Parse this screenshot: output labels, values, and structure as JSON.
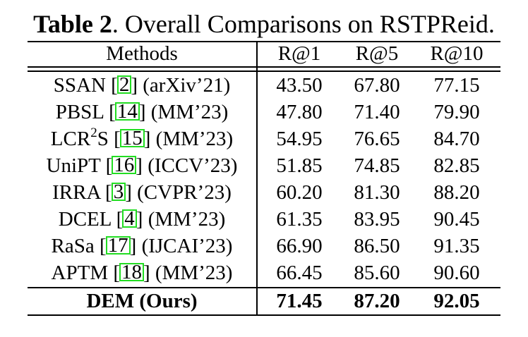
{
  "caption": {
    "label": "Table 2",
    "text": ". Overall Comparisons on RSTPReid."
  },
  "header": {
    "methods": "Methods",
    "r1": "R@1",
    "r5": "R@5",
    "r10": "R@10"
  },
  "rows": [
    {
      "pre": "SSAN [",
      "cite": "2",
      "post": "] (arXiv’21)",
      "r1": "43.50",
      "r5": "67.80",
      "r10": "77.15"
    },
    {
      "pre": "PBSL [",
      "cite": "14",
      "post": "] (MM’23)",
      "r1": "47.80",
      "r5": "71.40",
      "r10": "79.90"
    },
    {
      "pre": "LCR",
      "sup": "2",
      "pre2": "S [",
      "cite": "15",
      "post": "] (MM’23)",
      "r1": "54.95",
      "r5": "76.65",
      "r10": "84.70"
    },
    {
      "pre": "UniPT [",
      "cite": "16",
      "post": "] (ICCV’23)",
      "r1": "51.85",
      "r5": "74.85",
      "r10": "82.85"
    },
    {
      "pre": "IRRA [",
      "cite": "3",
      "post": "] (CVPR’23)",
      "r1": "60.20",
      "r5": "81.30",
      "r10": "88.20"
    },
    {
      "pre": "DCEL [",
      "cite": "4",
      "post": "] (MM’23)",
      "r1": "61.35",
      "r5": "83.95",
      "r10": "90.45"
    },
    {
      "pre": "RaSa [",
      "cite": "17",
      "post": "] (IJCAI’23)",
      "r1": "66.90",
      "r5": "86.50",
      "r10": "91.35"
    },
    {
      "pre": "APTM [",
      "cite": "18",
      "post": "] (MM’23)",
      "r1": "66.45",
      "r5": "85.60",
      "r10": "90.60"
    }
  ],
  "ours": {
    "method": "DEM (Ours)",
    "r1": "71.45",
    "r5": "87.20",
    "r10": "92.05"
  },
  "colors": {
    "citation_box": "#22dd22"
  }
}
